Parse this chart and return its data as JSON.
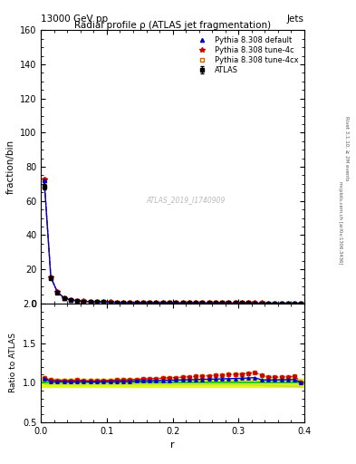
{
  "title": "Radial profile ρ (ATLAS jet fragmentation)",
  "top_left_label": "13000 GeV pp",
  "top_right_label": "Jets",
  "right_label_top": "Rivet 3.1.10, ≥ 2M events",
  "right_label_bot": "mcplots.cern.ch [arXiv:1306.3436]",
  "watermark": "ATLAS_2019_I1740909",
  "xlabel": "r",
  "ylabel_main": "fraction/bin",
  "ylabel_ratio": "Ratio to ATLAS",
  "xlim": [
    0.0,
    0.4
  ],
  "ylim_main": [
    0,
    160
  ],
  "ylim_ratio": [
    0.5,
    2.0
  ],
  "yticks_main": [
    0,
    20,
    40,
    60,
    80,
    100,
    120,
    140,
    160
  ],
  "yticks_ratio": [
    0.5,
    1.0,
    1.5,
    2.0
  ],
  "r_values": [
    0.005,
    0.015,
    0.025,
    0.035,
    0.045,
    0.055,
    0.065,
    0.075,
    0.085,
    0.095,
    0.105,
    0.115,
    0.125,
    0.135,
    0.145,
    0.155,
    0.165,
    0.175,
    0.185,
    0.195,
    0.205,
    0.215,
    0.225,
    0.235,
    0.245,
    0.255,
    0.265,
    0.275,
    0.285,
    0.295,
    0.305,
    0.315,
    0.325,
    0.335,
    0.345,
    0.355,
    0.365,
    0.375,
    0.385,
    0.395
  ],
  "atlas_values": [
    68.5,
    15.0,
    6.5,
    3.2,
    2.0,
    1.5,
    1.2,
    1.0,
    0.85,
    0.75,
    0.68,
    0.62,
    0.57,
    0.52,
    0.48,
    0.44,
    0.41,
    0.38,
    0.35,
    0.33,
    0.31,
    0.29,
    0.27,
    0.26,
    0.24,
    0.23,
    0.22,
    0.21,
    0.2,
    0.19,
    0.18,
    0.17,
    0.16,
    0.155,
    0.15,
    0.145,
    0.14,
    0.135,
    0.13,
    0.125
  ],
  "atlas_errors": [
    1.5,
    0.3,
    0.15,
    0.08,
    0.05,
    0.04,
    0.03,
    0.025,
    0.02,
    0.018,
    0.016,
    0.015,
    0.013,
    0.012,
    0.011,
    0.01,
    0.009,
    0.009,
    0.008,
    0.008,
    0.007,
    0.007,
    0.006,
    0.006,
    0.006,
    0.005,
    0.005,
    0.005,
    0.005,
    0.004,
    0.004,
    0.004,
    0.004,
    0.004,
    0.004,
    0.003,
    0.003,
    0.003,
    0.003,
    0.003
  ],
  "pythia_default_values": [
    72.0,
    15.2,
    6.6,
    3.25,
    2.02,
    1.52,
    1.22,
    1.01,
    0.86,
    0.76,
    0.69,
    0.63,
    0.58,
    0.53,
    0.49,
    0.45,
    0.42,
    0.39,
    0.36,
    0.34,
    0.32,
    0.3,
    0.28,
    0.27,
    0.25,
    0.24,
    0.23,
    0.22,
    0.21,
    0.2,
    0.19,
    0.18,
    0.17,
    0.16,
    0.155,
    0.15,
    0.145,
    0.14,
    0.135,
    0.125
  ],
  "pythia_4c_values": [
    72.5,
    15.5,
    6.7,
    3.3,
    2.05,
    1.55,
    1.23,
    1.02,
    0.87,
    0.77,
    0.7,
    0.64,
    0.59,
    0.54,
    0.5,
    0.46,
    0.43,
    0.4,
    0.37,
    0.35,
    0.33,
    0.31,
    0.29,
    0.28,
    0.26,
    0.25,
    0.24,
    0.23,
    0.22,
    0.21,
    0.2,
    0.19,
    0.18,
    0.17,
    0.16,
    0.155,
    0.15,
    0.145,
    0.14,
    0.126
  ],
  "pythia_4cx_values": [
    72.5,
    15.5,
    6.7,
    3.3,
    2.05,
    1.55,
    1.23,
    1.02,
    0.87,
    0.77,
    0.7,
    0.64,
    0.59,
    0.54,
    0.5,
    0.46,
    0.43,
    0.4,
    0.37,
    0.35,
    0.33,
    0.31,
    0.29,
    0.28,
    0.26,
    0.25,
    0.24,
    0.23,
    0.22,
    0.21,
    0.2,
    0.19,
    0.18,
    0.17,
    0.16,
    0.155,
    0.15,
    0.145,
    0.14,
    0.126
  ],
  "ratio_default": [
    1.05,
    1.013,
    1.015,
    1.016,
    1.01,
    1.013,
    1.017,
    1.01,
    1.012,
    1.013,
    1.015,
    1.016,
    1.018,
    1.019,
    1.021,
    1.023,
    1.024,
    1.026,
    1.029,
    1.03,
    1.032,
    1.034,
    1.037,
    1.038,
    1.042,
    1.043,
    1.045,
    1.048,
    1.05,
    1.053,
    1.055,
    1.059,
    1.063,
    1.035,
    1.033,
    1.034,
    1.036,
    1.037,
    1.038,
    1.0
  ],
  "ratio_4c": [
    1.06,
    1.033,
    1.031,
    1.031,
    1.025,
    1.033,
    1.025,
    1.02,
    1.024,
    1.027,
    1.029,
    1.032,
    1.035,
    1.038,
    1.042,
    1.045,
    1.049,
    1.053,
    1.057,
    1.061,
    1.065,
    1.069,
    1.074,
    1.077,
    1.083,
    1.087,
    1.091,
    1.095,
    1.1,
    1.105,
    1.111,
    1.118,
    1.125,
    1.097,
    1.067,
    1.069,
    1.071,
    1.074,
    1.077,
    1.008
  ],
  "ratio_4cx": [
    1.06,
    1.033,
    1.031,
    1.031,
    1.025,
    1.033,
    1.025,
    1.02,
    1.024,
    1.027,
    1.029,
    1.032,
    1.035,
    1.038,
    1.042,
    1.045,
    1.049,
    1.053,
    1.057,
    1.061,
    1.065,
    1.069,
    1.074,
    1.077,
    1.083,
    1.087,
    1.091,
    1.095,
    1.1,
    1.105,
    1.111,
    1.118,
    1.125,
    1.097,
    1.067,
    1.069,
    1.071,
    1.074,
    1.077,
    1.008
  ],
  "atlas_ratio_err": [
    0.022,
    0.02,
    0.023,
    0.025,
    0.025,
    0.027,
    0.027,
    0.025,
    0.024,
    0.024,
    0.024,
    0.024,
    0.023,
    0.023,
    0.023,
    0.023,
    0.022,
    0.022,
    0.023,
    0.024,
    0.023,
    0.023,
    0.022,
    0.022,
    0.025,
    0.025,
    0.023,
    0.023,
    0.025,
    0.025,
    0.025,
    0.025,
    0.029,
    0.03,
    0.035,
    0.038,
    0.04,
    0.042,
    0.045,
    0.05
  ],
  "color_atlas": "#000000",
  "color_default": "#0000cc",
  "color_4c": "#cc0000",
  "color_4cx": "#cc6600",
  "color_ratio_band_yellow": "#ddff00",
  "color_ratio_band_green": "#00cc00",
  "color_watermark": "#bbbbbb",
  "legend_atlas": "ATLAS",
  "legend_default": "Pythia 8.308 default",
  "legend_4c": "Pythia 8.308 tune-4c",
  "legend_4cx": "Pythia 8.308 tune-4cx"
}
